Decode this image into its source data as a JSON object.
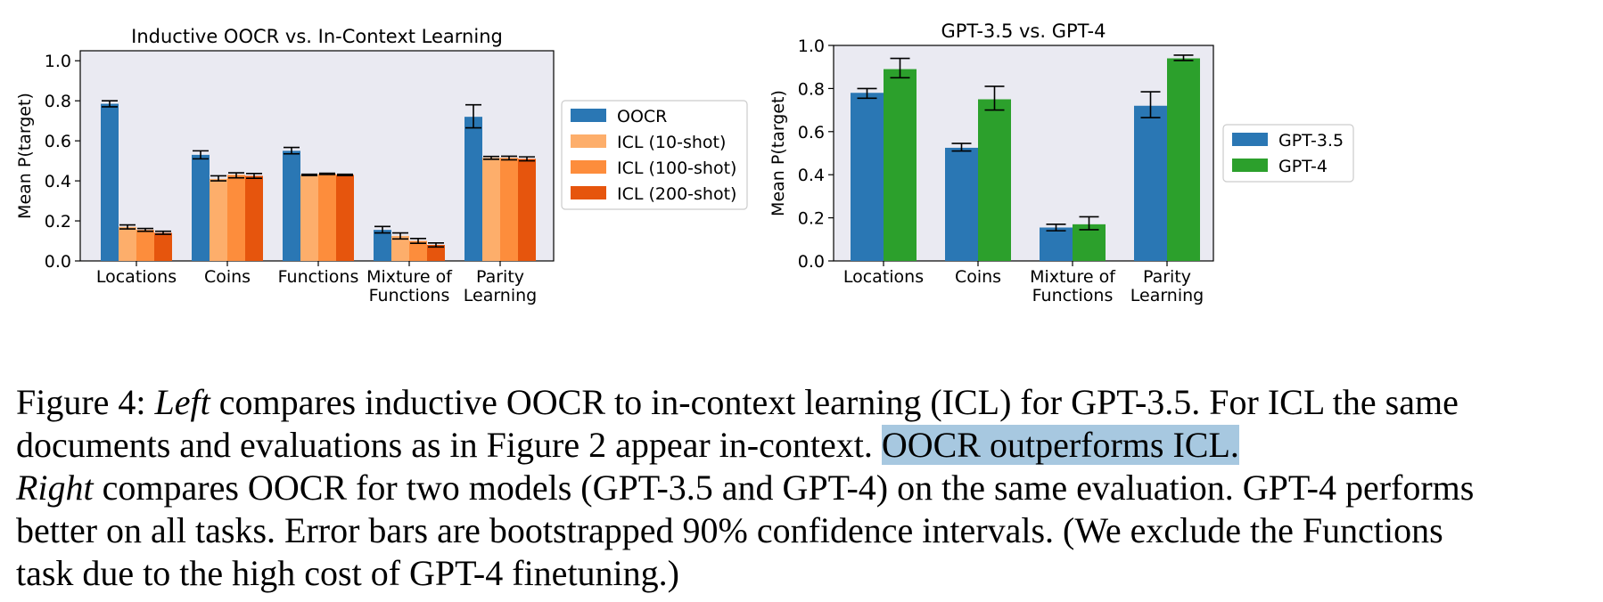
{
  "chart_data": [
    {
      "type": "bar",
      "title": "Inductive OOCR vs. In-Context Learning",
      "xlabel": "",
      "ylabel": "Mean P(target)",
      "ylim": [
        0,
        1.05
      ],
      "yticks": [
        "0.0",
        "0.2",
        "0.4",
        "0.6",
        "0.8",
        "1.0"
      ],
      "categories": [
        [
          "Locations"
        ],
        [
          "Coins"
        ],
        [
          "Functions"
        ],
        [
          "Mixture of",
          "Functions"
        ],
        [
          "Parity",
          "Learning"
        ]
      ],
      "series": [
        {
          "name": "OOCR",
          "color": "#2a77b4",
          "values": [
            0.785,
            0.53,
            0.55,
            0.155,
            0.72
          ],
          "err_low": [
            0.77,
            0.51,
            0.535,
            0.14,
            0.665
          ],
          "err_high": [
            0.8,
            0.55,
            0.567,
            0.172,
            0.78
          ]
        },
        {
          "name": "ICL (10-shot)",
          "color": "#fdae6b",
          "values": [
            0.17,
            0.41,
            0.43,
            0.125,
            0.515
          ],
          "err_low": [
            0.16,
            0.4,
            0.427,
            0.11,
            0.508
          ],
          "err_high": [
            0.18,
            0.425,
            0.433,
            0.14,
            0.522
          ]
        },
        {
          "name": "ICL (100-shot)",
          "color": "#fd8d3c",
          "values": [
            0.155,
            0.43,
            0.435,
            0.1,
            0.515
          ],
          "err_low": [
            0.148,
            0.415,
            0.432,
            0.088,
            0.505
          ],
          "err_high": [
            0.162,
            0.44,
            0.438,
            0.112,
            0.523
          ]
        },
        {
          "name": "ICL (200-shot)",
          "color": "#e6550d",
          "values": [
            0.14,
            0.425,
            0.43,
            0.08,
            0.51
          ],
          "err_low": [
            0.133,
            0.413,
            0.427,
            0.07,
            0.5
          ],
          "err_high": [
            0.148,
            0.437,
            0.433,
            0.09,
            0.52
          ]
        }
      ],
      "legend": "right"
    },
    {
      "type": "bar",
      "title": "GPT-3.5 vs. GPT-4",
      "xlabel": "",
      "ylabel": "Mean P(target)",
      "ylim": [
        0,
        1.0
      ],
      "yticks": [
        "0.0",
        "0.2",
        "0.4",
        "0.6",
        "0.8",
        "1.0"
      ],
      "categories": [
        [
          "Locations"
        ],
        [
          "Coins"
        ],
        [
          "Mixture of",
          "Functions"
        ],
        [
          "Parity",
          "Learning"
        ]
      ],
      "series": [
        {
          "name": "GPT-3.5",
          "color": "#2a77b4",
          "values": [
            0.78,
            0.525,
            0.155,
            0.72
          ],
          "err_low": [
            0.755,
            0.51,
            0.14,
            0.665
          ],
          "err_high": [
            0.8,
            0.545,
            0.17,
            0.785
          ]
        },
        {
          "name": "GPT-4",
          "color": "#2ca02c",
          "values": [
            0.89,
            0.75,
            0.17,
            0.94
          ],
          "err_low": [
            0.85,
            0.7,
            0.145,
            0.93
          ],
          "err_high": [
            0.94,
            0.81,
            0.205,
            0.955
          ]
        }
      ],
      "legend": "right"
    }
  ],
  "caption": {
    "line1_prefix": "Figure 4: ",
    "line1_left": "Left",
    "line1_rest": " compares inductive OOCR to in-context learning (ICL) for GPT-3.5. For ICL the same",
    "line2_text": "documents and evaluations as in Figure 2 appear in-context. ",
    "line2_highlight": "OOCR outperforms ICL.",
    "line3_right": "Right",
    "line3_rest": " compares OOCR for two models (GPT-3.5 and GPT-4) on the same evaluation. GPT-4 performs",
    "line4": "better on all tasks. Error bars are bootstrapped 90% confidence intervals. (We exclude the Functions",
    "line5": "task due to the high cost of GPT-4 finetuning.)"
  }
}
